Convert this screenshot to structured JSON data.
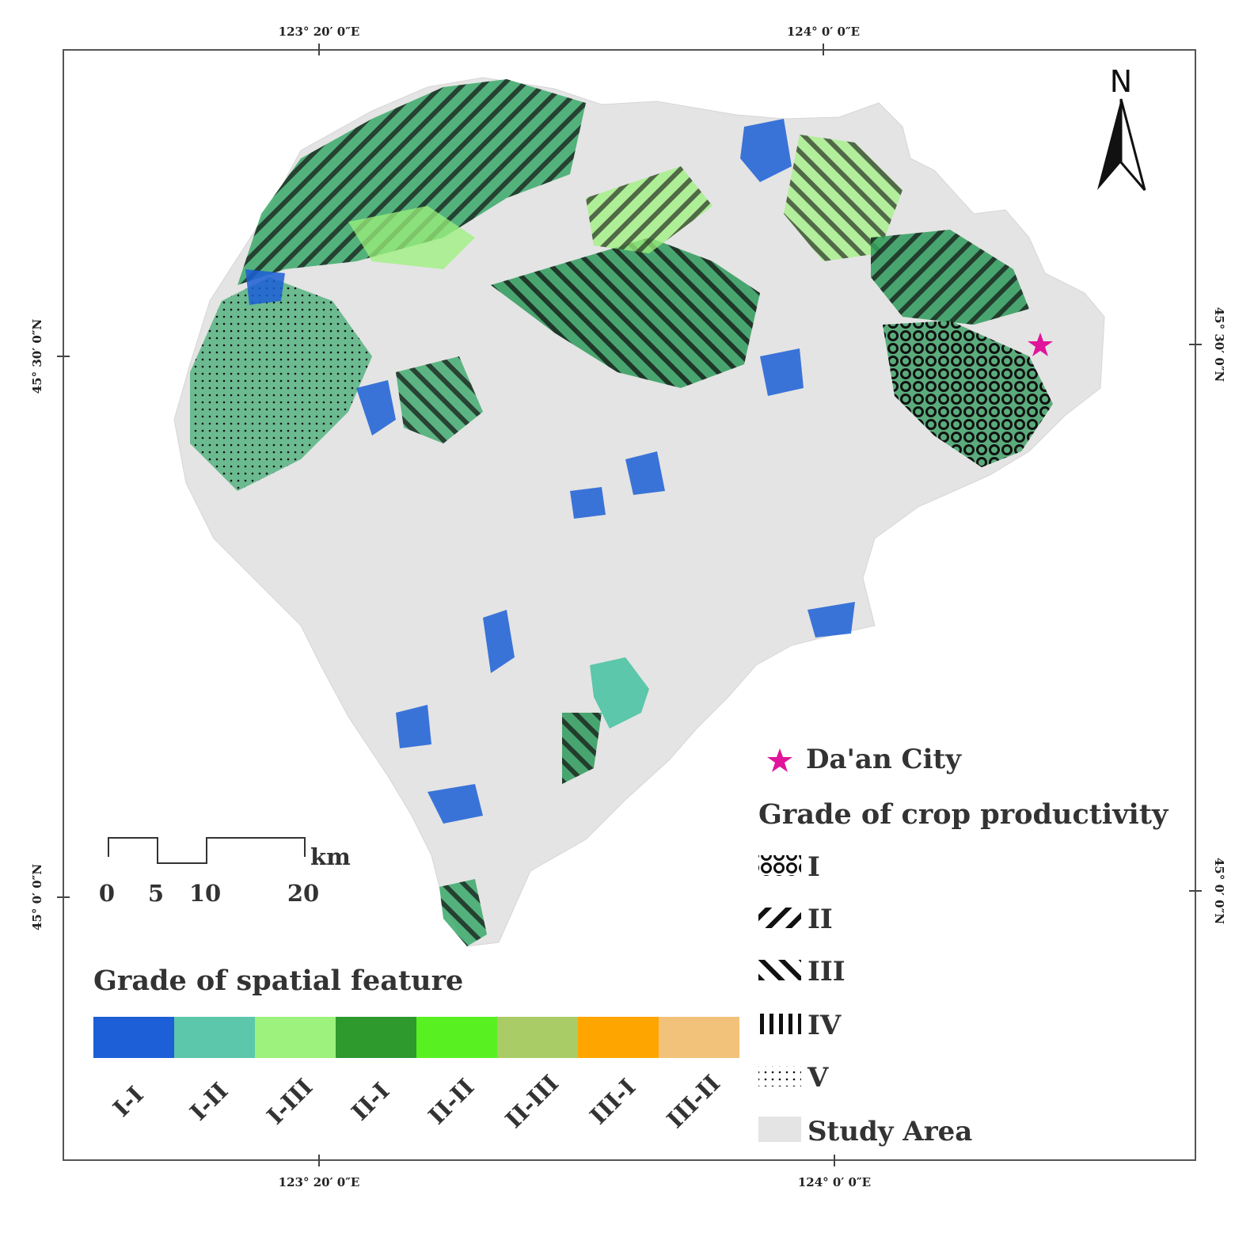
{
  "coordinates": {
    "top": [
      "123° 20′ 0″E",
      "124° 0′ 0″E"
    ],
    "bottom": [
      "123° 20′ 0″E",
      "124° 0′ 0″E"
    ],
    "left": [
      "45° 30′ 0″N",
      "45° 0′ 0″N"
    ],
    "right": [
      "45° 30′ 0″N",
      "45° 0′ 0″N"
    ]
  },
  "north_arrow": {
    "label": "N",
    "icon": "north-arrow-icon"
  },
  "scale_bar": {
    "unit": "km",
    "ticks": [
      "0",
      "5",
      "10",
      "20"
    ]
  },
  "city": {
    "label": "Da'an City",
    "icon": "star-icon",
    "color": "#e0159a"
  },
  "productivity_legend": {
    "title": "Grade of crop productivity",
    "items": [
      {
        "label": "I",
        "pattern": "crosshatch"
      },
      {
        "label": "II",
        "pattern": "diagonal-right"
      },
      {
        "label": "III",
        "pattern": "diagonal-left"
      },
      {
        "label": "IV",
        "pattern": "vertical"
      },
      {
        "label": "V",
        "pattern": "dots"
      }
    ],
    "study_area": {
      "label": "Study Area",
      "color": "#e4e4e4"
    }
  },
  "spatial_legend": {
    "title": "Grade of spatial feature",
    "items": [
      {
        "label": "I-I",
        "color": "#1c5fd6"
      },
      {
        "label": "I-II",
        "color": "#5cc7aa"
      },
      {
        "label": "I-III",
        "color": "#9cf27c"
      },
      {
        "label": "II-I",
        "color": "#2e9a2e"
      },
      {
        "label": "II-II",
        "color": "#59f021"
      },
      {
        "label": "II-III",
        "color": "#aacc66"
      },
      {
        "label": "III-I",
        "color": "#ffa500"
      },
      {
        "label": "III-II",
        "color": "#f2c27a"
      }
    ]
  }
}
